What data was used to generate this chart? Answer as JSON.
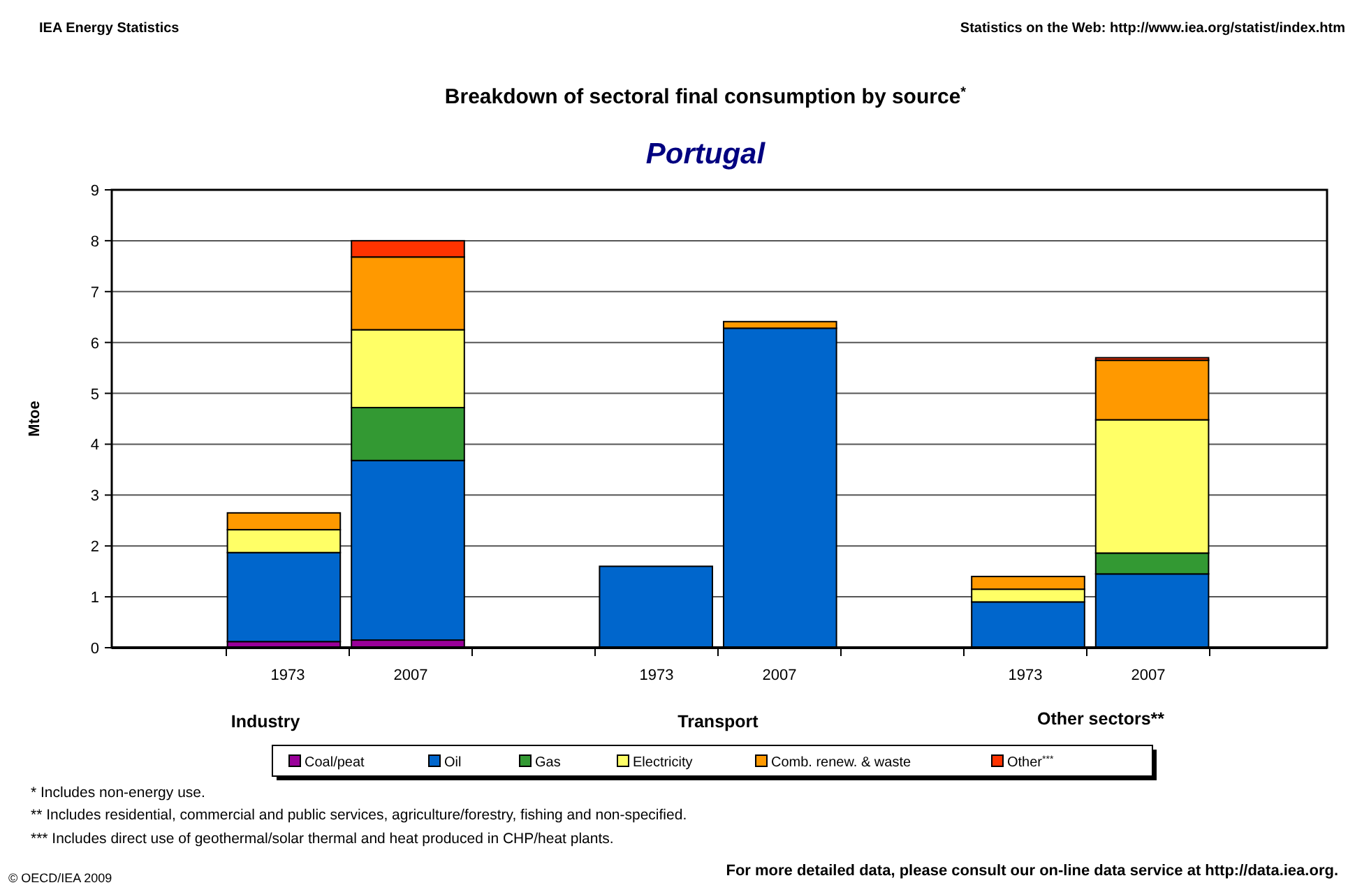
{
  "chart_data": {
    "type": "bar",
    "title": "Breakdown of sectoral final consumption by source$^{*}$",
    "subtitle": "Portugal",
    "ylabel": "Mtoe",
    "stacked": true,
    "grid": "y",
    "legend": "bottom",
    "categories": [
      null,
      "1973",
      "2007",
      null,
      "1973",
      "2007",
      null,
      "1973",
      "2007",
      null
    ],
    "series": [
      {
        "name": "Coal/peat",
        "color": "#990099",
        "values": [
          null,
          0.12,
          0.15,
          null,
          null,
          null,
          null,
          null,
          null,
          null
        ]
      },
      {
        "name": "Oil",
        "color": "#0066cc",
        "values": [
          null,
          1.75,
          3.53,
          null,
          1.6,
          6.28,
          null,
          0.9,
          1.45,
          null
        ]
      },
      {
        "name": "Gas",
        "color": "#339933",
        "values": [
          null,
          0,
          1.04,
          null,
          0,
          0,
          null,
          0,
          0.41,
          null
        ]
      },
      {
        "name": "Electricity",
        "color": "#ffff66",
        "values": [
          null,
          0.45,
          1.53,
          null,
          0,
          0,
          null,
          0.25,
          2.62,
          null
        ]
      },
      {
        "name": "Comb. renew. & waste",
        "color": "#ff9900",
        "values": [
          null,
          0.33,
          1.43,
          null,
          0,
          0.13,
          null,
          0.25,
          1.17,
          null
        ]
      },
      {
        "name": "Other$^{***}$",
        "color": "#ff3300",
        "values": [
          null,
          0,
          0.32,
          null,
          0,
          0,
          null,
          0,
          0.05,
          null
        ]
      }
    ],
    "ylim": [
      0,
      9
    ],
    "yticks": [
      0,
      1,
      2,
      3,
      4,
      5,
      6,
      7,
      8,
      9
    ],
    "annotations": [
      "Industry",
      "Transport",
      "Other sectors**",
      "IEA Energy Statistics",
      "Statistics on the Web: http://www.iea.org/statist/index.htm",
      "*  Includes non-energy use.",
      "**  Includes residential, commercial and public services, agriculture/forestry, fishing and non-specified.",
      "*** Includes direct use of geothermal/solar thermal and heat produced in CHP/heat plants.",
      "For more detailed data, please consult our on-line data service at http://data.iea.org.",
      "© OECD/IEA 2009"
    ]
  }
}
